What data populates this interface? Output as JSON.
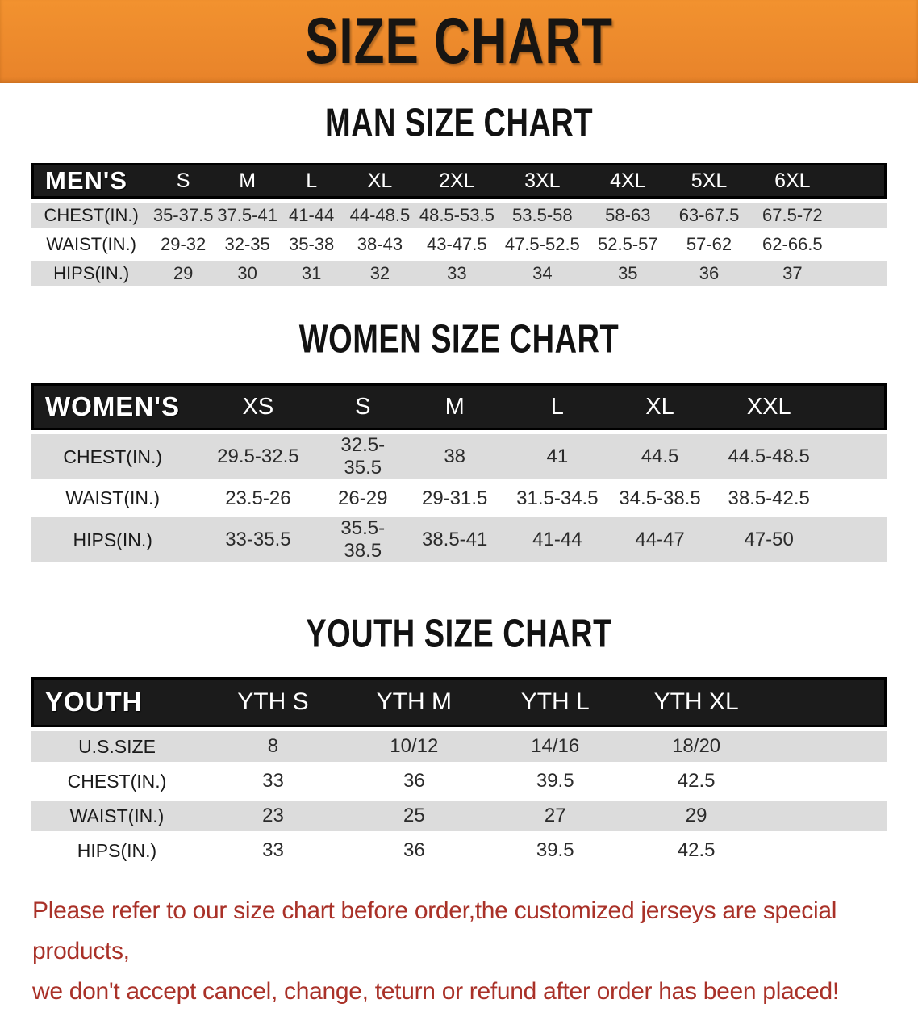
{
  "banner": {
    "title": "SIZE CHART",
    "bg_color": "#EE8A2B",
    "text_color": "#181512"
  },
  "colors": {
    "table_header_bar": "#1B1B1B",
    "row_stripe_gray": "#DCDCDC",
    "disclaimer_red": "#A93128"
  },
  "chart_data": [
    {
      "type": "table",
      "title": "MAN SIZE CHART",
      "header_label": "MEN'S",
      "columns": [
        "S",
        "M",
        "L",
        "XL",
        "2XL",
        "3XL",
        "4XL",
        "5XL",
        "6XL"
      ],
      "rows": [
        {
          "label": "CHEST(IN.)",
          "values": [
            "35-37.5",
            "37.5-41",
            "41-44",
            "44-48.5",
            "48.5-53.5",
            "53.5-58",
            "58-63",
            "63-67.5",
            "67.5-72"
          ]
        },
        {
          "label": "WAIST(IN.)",
          "values": [
            "29-32",
            "32-35",
            "35-38",
            "38-43",
            "43-47.5",
            "47.5-52.5",
            "52.5-57",
            "57-62",
            "62-66.5"
          ]
        },
        {
          "label": "HIPS(IN.)",
          "values": [
            "29",
            "30",
            "31",
            "32",
            "33",
            "34",
            "35",
            "36",
            "37"
          ]
        }
      ]
    },
    {
      "type": "table",
      "title": "WOMEN SIZE CHART",
      "header_label": "WOMEN'S",
      "columns": [
        "XS",
        "S",
        "M",
        "L",
        "XL",
        "XXL"
      ],
      "rows": [
        {
          "label": "CHEST(IN.)",
          "values": [
            "29.5-32.5",
            "32.5-35.5",
            "38",
            "41",
            "44.5",
            "44.5-48.5"
          ]
        },
        {
          "label": "WAIST(IN.)",
          "values": [
            "23.5-26",
            "26-29",
            "29-31.5",
            "31.5-34.5",
            "34.5-38.5",
            "38.5-42.5"
          ]
        },
        {
          "label": "HIPS(IN.)",
          "values": [
            "33-35.5",
            "35.5-38.5",
            "38.5-41",
            "41-44",
            "44-47",
            "47-50"
          ]
        }
      ]
    },
    {
      "type": "table",
      "title": "YOUTH SIZE CHART",
      "header_label": "YOUTH",
      "columns": [
        "YTH S",
        "YTH M",
        "YTH L",
        "YTH XL"
      ],
      "rows": [
        {
          "label": "U.S.SIZE",
          "values": [
            "8",
            "10/12",
            "14/16",
            "18/20"
          ]
        },
        {
          "label": "CHEST(IN.)",
          "values": [
            "33",
            "36",
            "39.5",
            "42.5"
          ]
        },
        {
          "label": "WAIST(IN.)",
          "values": [
            "23",
            "25",
            "27",
            "29"
          ]
        },
        {
          "label": "HIPS(IN.)",
          "values": [
            "33",
            "36",
            "39.5",
            "42.5"
          ]
        }
      ]
    }
  ],
  "disclaimer": {
    "line1": "Please refer to our size chart before order,the customized jerseys are special products,",
    "line2": "we don't accept cancel, change, teturn or refund after order has been placed!"
  }
}
